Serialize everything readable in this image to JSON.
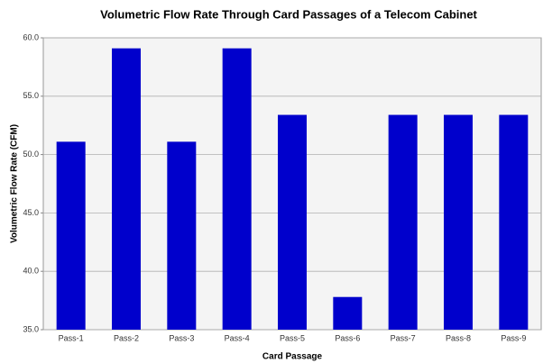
{
  "chart_data": {
    "type": "bar",
    "title": "Volumetric Flow Rate Through Card Passages of a Telecom Cabinet",
    "x_label": "Card Passage",
    "y_label": "Volumetric Flow Rate (CFM)",
    "categories": [
      "Pass-1",
      "Pass-2",
      "Pass-3",
      "Pass-4",
      "Pass-5",
      "Pass-6",
      "Pass-7",
      "Pass-8",
      "Pass-9"
    ],
    "values": [
      51.1,
      59.1,
      51.1,
      59.1,
      53.4,
      37.8,
      53.4,
      53.4,
      53.4
    ],
    "color": "#0000cc",
    "ylim": [
      35,
      60
    ],
    "yticks": [
      {
        "value": 35,
        "label": "35.0"
      },
      {
        "value": 40,
        "label": "40.0"
      },
      {
        "value": 45,
        "label": "45.0"
      },
      {
        "value": 50,
        "label": "50.0"
      },
      {
        "value": 55,
        "label": "55.0"
      },
      {
        "value": 60,
        "label": "60.0"
      }
    ],
    "grid": true
  }
}
